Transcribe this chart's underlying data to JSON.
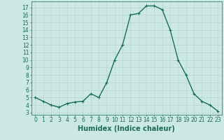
{
  "x": [
    0,
    1,
    2,
    3,
    4,
    5,
    6,
    7,
    8,
    9,
    10,
    11,
    12,
    13,
    14,
    15,
    16,
    17,
    18,
    19,
    20,
    21,
    22,
    23
  ],
  "y": [
    5,
    4.5,
    4,
    3.7,
    4.2,
    4.4,
    4.5,
    5.5,
    5,
    7,
    10,
    12,
    16,
    16.2,
    17.2,
    17.2,
    16.7,
    14,
    10,
    8,
    5.5,
    4.5,
    4,
    3.2
  ],
  "line_color": "#1a6b5a",
  "marker": "+",
  "marker_size": 3,
  "linewidth": 1.0,
  "bg_color": "#cce8e4",
  "grid_color": "#b0d0cc",
  "xlabel": "Humidex (Indice chaleur)",
  "xlabel_fontsize": 7,
  "ylabel_ticks": [
    3,
    4,
    5,
    6,
    7,
    8,
    9,
    10,
    11,
    12,
    13,
    14,
    15,
    16,
    17
  ],
  "ylim": [
    2.7,
    17.8
  ],
  "xlim": [
    -0.5,
    23.5
  ],
  "xticks": [
    0,
    1,
    2,
    3,
    4,
    5,
    6,
    7,
    8,
    9,
    10,
    11,
    12,
    13,
    14,
    15,
    16,
    17,
    18,
    19,
    20,
    21,
    22,
    23
  ],
  "tick_fontsize": 5.5,
  "tick_color": "#1a6b5a"
}
